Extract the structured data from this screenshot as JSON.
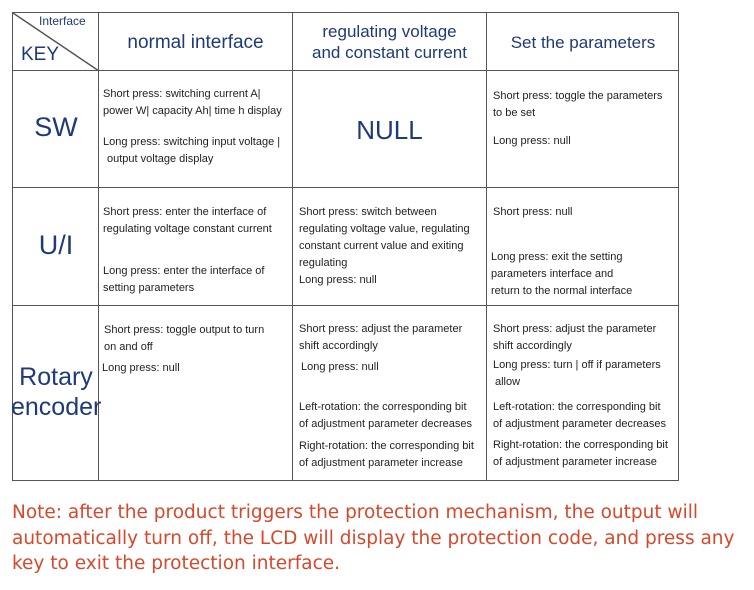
{
  "table": {
    "corner": {
      "top_label": "Interface",
      "bottom_label": "KEY"
    },
    "columns": [
      "normal interface",
      "regulating voltage and constant current",
      "Set the parameters"
    ],
    "column_lines": {
      "col2": [
        "regulating voltage",
        "and constant current"
      ]
    },
    "rows": [
      {
        "key": "SW",
        "normal": {
          "short": [
            "Short press: switching current A|",
            "power W| capacity Ah| time h display"
          ],
          "long": [
            "Long press: switching input voltage |",
            "output voltage display"
          ]
        },
        "regulating": {
          "null": "NULL"
        },
        "set": {
          "short": [
            "Short press: toggle the parameters",
            "to be set"
          ],
          "long": [
            "Long press: null"
          ]
        }
      },
      {
        "key": "U/I",
        "normal": {
          "short": [
            "Short press: enter the interface of",
            "regulating voltage constant current"
          ],
          "long": [
            "Long press: enter the interface of",
            "setting parameters"
          ]
        },
        "regulating": {
          "short": [
            "Short press: switch between",
            "regulating voltage value, regulating",
            "constant current value and exiting",
            "regulating"
          ],
          "long": [
            "Long press: null"
          ]
        },
        "set": {
          "short": [
            "Short press: null"
          ],
          "long": [
            "Long press: exit the setting",
            "parameters interface and",
            "return to the normal interface"
          ]
        }
      },
      {
        "key": [
          "Rotary",
          "encoder"
        ],
        "normal": {
          "short": [
            "Short press: toggle output to turn",
            "on and off"
          ],
          "long": [
            "Long press: null"
          ]
        },
        "regulating": {
          "short": [
            "Short press: adjust the parameter",
            "shift accordingly"
          ],
          "long": [
            "Long press: null"
          ],
          "left": [
            "Left-rotation: the corresponding bit",
            "of adjustment parameter decreases"
          ],
          "right": [
            "Right-rotation: the corresponding bit",
            "of adjustment parameter increase"
          ]
        },
        "set": {
          "short": [
            "Short press: adjust the parameter",
            "shift accordingly"
          ],
          "long": [
            "Long press: turn | off if parameters",
            "allow"
          ],
          "left": [
            "Left-rotation: the corresponding bit",
            "of adjustment parameter decreases"
          ],
          "right": [
            "Right-rotation: the corresponding bit",
            "of adjustment parameter increase"
          ]
        }
      }
    ]
  },
  "note": {
    "lines": [
      "Note: after the product triggers the protection mechanism, the output will",
      "automatically turn off, the LCD will display the protection code, and press any",
      "key to exit the protection interface."
    ],
    "color": "#d9472b"
  },
  "colors": {
    "header_text": "#1f3a78",
    "grid_line": "#555555"
  }
}
